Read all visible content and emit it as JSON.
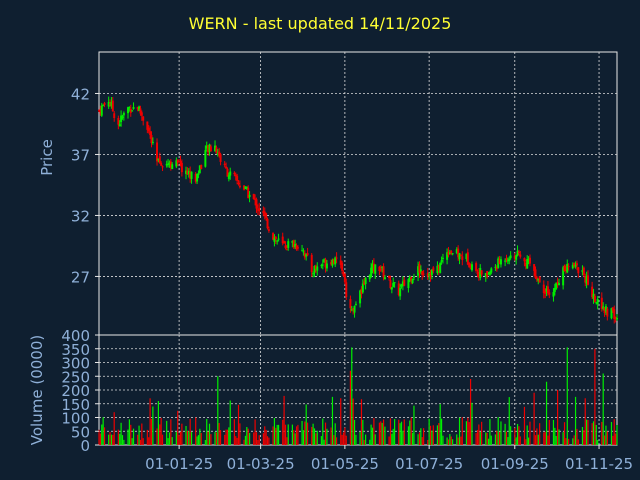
{
  "chart_data": [
    {
      "type": "candlestick",
      "title": "WERN - last updated 14/11/2025",
      "ylabel": "Price",
      "ylim": [
        22.2,
        45.4
      ],
      "y_ticks": [
        27,
        32,
        37,
        42
      ],
      "x_tick_labels": [
        "01-01-25",
        "01-03-25",
        "01-05-25",
        "01-07-25",
        "01-09-25",
        "01-11-25"
      ],
      "x_tick_dates": [
        "2025-01-01",
        "2025-03-01",
        "2025-05-01",
        "2025-07-01",
        "2025-09-01",
        "2025-11-01"
      ],
      "x_range": [
        "2024-11-04",
        "2025-11-14"
      ],
      "grid": true,
      "up_color": "#00ee00",
      "down_color": "#ee0000",
      "price_series": [
        [
          "2024-11-04",
          40.6
        ],
        [
          "2024-11-11",
          41.5
        ],
        [
          "2024-11-18",
          39.5
        ],
        [
          "2024-11-25",
          40.8
        ],
        [
          "2024-12-02",
          40.9
        ],
        [
          "2024-12-09",
          39.3
        ],
        [
          "2024-12-16",
          36.3
        ],
        [
          "2024-12-23",
          36.4
        ],
        [
          "2024-12-30",
          36.2
        ],
        [
          "2025-01-06",
          35.6
        ],
        [
          "2025-01-13",
          35.0
        ],
        [
          "2025-01-20",
          37.2
        ],
        [
          "2025-01-27",
          37.7
        ],
        [
          "2025-02-03",
          35.8
        ],
        [
          "2025-02-10",
          35.0
        ],
        [
          "2025-02-17",
          34.2
        ],
        [
          "2025-02-24",
          33.2
        ],
        [
          "2025-03-03",
          32.0
        ],
        [
          "2025-03-10",
          30.3
        ],
        [
          "2025-03-17",
          29.5
        ],
        [
          "2025-03-24",
          29.7
        ],
        [
          "2025-03-31",
          29.4
        ],
        [
          "2025-04-07",
          27.5
        ],
        [
          "2025-04-14",
          28.0
        ],
        [
          "2025-04-21",
          28.4
        ],
        [
          "2025-04-28",
          27.8
        ],
        [
          "2025-05-05",
          24.0
        ],
        [
          "2025-05-12",
          25.5
        ],
        [
          "2025-05-19",
          27.5
        ],
        [
          "2025-05-26",
          27.8
        ],
        [
          "2025-06-02",
          26.5
        ],
        [
          "2025-06-09",
          25.8
        ],
        [
          "2025-06-16",
          26.8
        ],
        [
          "2025-06-23",
          27.6
        ],
        [
          "2025-06-30",
          27.3
        ],
        [
          "2025-07-07",
          27.5
        ],
        [
          "2025-07-14",
          29.2
        ],
        [
          "2025-07-21",
          28.8
        ],
        [
          "2025-07-28",
          28.5
        ],
        [
          "2025-08-04",
          27.5
        ],
        [
          "2025-08-11",
          27.0
        ],
        [
          "2025-08-18",
          27.8
        ],
        [
          "2025-08-25",
          28.6
        ],
        [
          "2025-09-01",
          28.8
        ],
        [
          "2025-09-08",
          28.4
        ],
        [
          "2025-09-15",
          27.5
        ],
        [
          "2025-09-22",
          26.0
        ],
        [
          "2025-09-29",
          25.8
        ],
        [
          "2025-10-06",
          27.5
        ],
        [
          "2025-10-13",
          27.8
        ],
        [
          "2025-10-20",
          27.5
        ],
        [
          "2025-10-27",
          25.5
        ],
        [
          "2025-11-03",
          24.2
        ],
        [
          "2025-11-10",
          24.0
        ],
        [
          "2025-11-14",
          23.4
        ]
      ]
    },
    {
      "type": "bar",
      "ylabel": "Volume (0000)",
      "ylim": [
        0,
        400
      ],
      "y_ticks": [
        0,
        50,
        100,
        150,
        200,
        250,
        300,
        350,
        400
      ],
      "x_tick_labels": [
        "01-01-25",
        "01-03-25",
        "01-05-25",
        "01-07-25",
        "01-09-25",
        "01-11-25"
      ],
      "grid": true,
      "typical_volume": 60,
      "volume_peaks": [
        [
          "2024-12-17",
          160
        ],
        [
          "2025-01-29",
          250
        ],
        [
          "2025-05-06",
          355
        ],
        [
          "2025-05-05",
          270
        ],
        [
          "2025-04-22",
          175
        ],
        [
          "2025-04-28",
          170
        ],
        [
          "2025-07-31",
          240
        ],
        [
          "2025-09-15",
          190
        ],
        [
          "2025-09-24",
          230
        ],
        [
          "2025-10-02",
          200
        ],
        [
          "2025-10-09",
          355
        ],
        [
          "2025-10-29",
          350
        ],
        [
          "2025-11-04",
          260
        ],
        [
          "2025-10-22",
          170
        ],
        [
          "2025-10-15",
          175
        ]
      ]
    }
  ]
}
